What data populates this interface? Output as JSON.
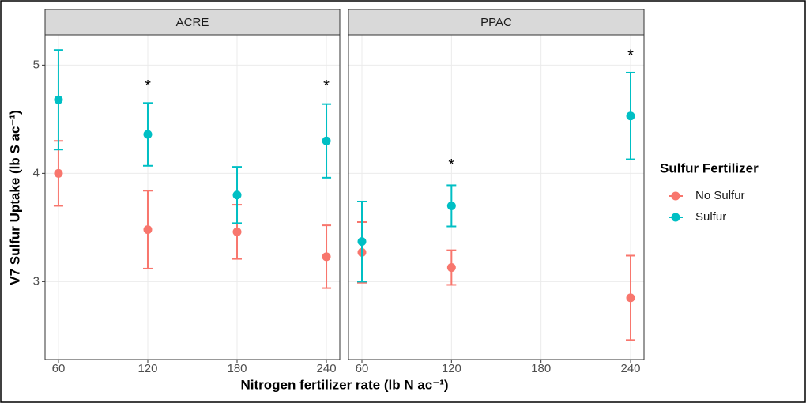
{
  "chart_data": {
    "type": "errorbar",
    "xlabel": "Nitrogen fertilizer rate (lb N ac⁻¹)",
    "ylabel": "V7 Sulfur Uptake (lb  S ac⁻¹)",
    "legend_title": "Sulfur Fertilizer",
    "legend_position": "right",
    "grid": true,
    "xlim": [
      51,
      249
    ],
    "xticks": [
      60,
      120,
      180,
      240
    ],
    "ylim": [
      2.28,
      5.28
    ],
    "yticks": [
      3,
      4,
      5
    ],
    "panels": [
      {
        "title": "ACRE",
        "x": [
          60,
          120,
          180,
          240
        ],
        "series": [
          {
            "name": "No Sulfur",
            "color": "#F8766D",
            "values": [
              4.0,
              3.48,
              3.46,
              3.23
            ],
            "errors": [
              0.3,
              0.36,
              0.25,
              0.29
            ]
          },
          {
            "name": "Sulfur",
            "color": "#00BFC4",
            "values": [
              4.68,
              4.36,
              3.8,
              4.3
            ],
            "errors": [
              0.46,
              0.29,
              0.26,
              0.34
            ]
          }
        ],
        "annotations": [
          {
            "text": "*",
            "x": 120,
            "y": 4.83
          },
          {
            "text": "*",
            "x": 240,
            "y": 4.83
          }
        ]
      },
      {
        "title": "PPAC",
        "x": [
          60,
          120,
          180,
          240
        ],
        "series": [
          {
            "name": "No Sulfur",
            "color": "#F8766D",
            "values": [
              3.27,
              3.13,
              null,
              2.85
            ],
            "errors": [
              0.28,
              0.16,
              null,
              0.39
            ]
          },
          {
            "name": "Sulfur",
            "color": "#00BFC4",
            "values": [
              3.37,
              3.7,
              null,
              4.53
            ],
            "errors": [
              0.37,
              0.19,
              null,
              0.4
            ]
          }
        ],
        "annotations": [
          {
            "text": "*",
            "x": 120,
            "y": 4.1
          },
          {
            "text": "*",
            "x": 240,
            "y": 5.11
          }
        ]
      }
    ]
  }
}
